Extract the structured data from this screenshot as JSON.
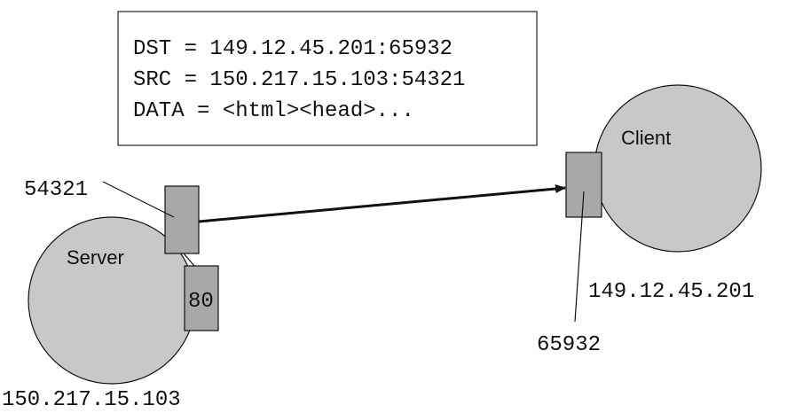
{
  "packet": {
    "line1": "DST = 149.12.45.201:65932",
    "line2": "SRC = 150.217.15.103:54321",
    "line3": "DATA = <html><head>..."
  },
  "server": {
    "label": "Server",
    "ip": "150.217.15.103",
    "port_active": "54321",
    "port_listen": "80"
  },
  "client": {
    "label": "Client",
    "ip": "149.12.45.201",
    "port": "65932"
  },
  "colors": {
    "host_fill": "#c8c8c8",
    "port_fill": "#a8a8a8",
    "stroke": "#111111"
  }
}
